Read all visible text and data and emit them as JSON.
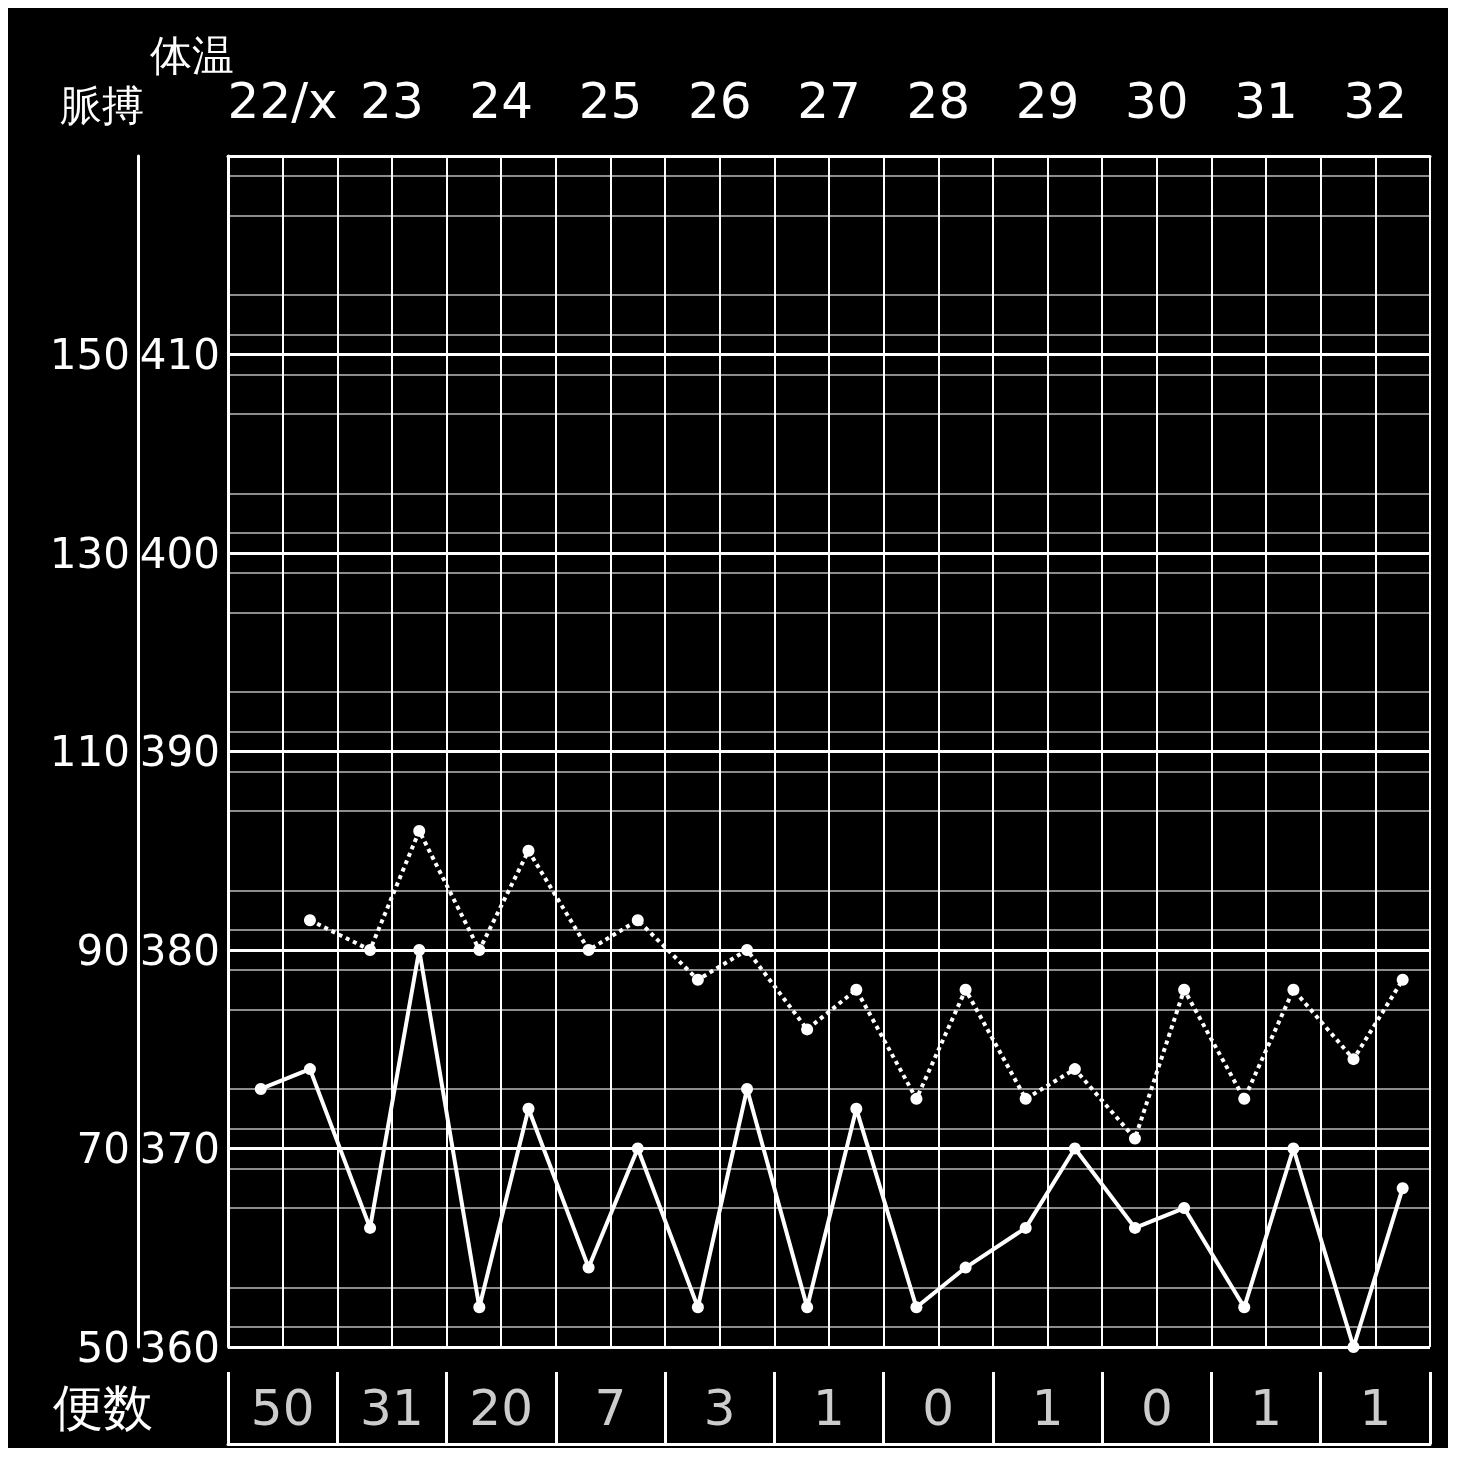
{
  "chart_data": [
    {
      "type": "line",
      "ylabel": "脈搏",
      "y2label": "体温",
      "x": [
        22.3,
        22.75,
        23.3,
        23.75,
        24.3,
        24.75,
        25.3,
        25.75,
        26.3,
        26.75,
        27.3,
        27.75,
        28.3,
        28.75,
        29.3,
        29.75,
        30.3,
        30.75,
        31.3,
        31.75,
        32.3,
        32.75
      ],
      "xlim": [
        22,
        33
      ],
      "xticks": [
        {
          "value": 22.5,
          "label": "22/x"
        },
        {
          "value": 23.5,
          "label": "23"
        },
        {
          "value": 24.5,
          "label": "24"
        },
        {
          "value": 25.5,
          "label": "25"
        },
        {
          "value": 26.5,
          "label": "26"
        },
        {
          "value": 27.5,
          "label": "27"
        },
        {
          "value": 28.5,
          "label": "28"
        },
        {
          "value": 29.5,
          "label": "29"
        },
        {
          "value": 30.5,
          "label": "30"
        },
        {
          "value": 31.5,
          "label": "31"
        },
        {
          "value": 32.5,
          "label": "32"
        }
      ],
      "ylim": [
        50,
        170
      ],
      "yticks": [
        50,
        70,
        90,
        110,
        130,
        150
      ],
      "y2lim": [
        360,
        420
      ],
      "y2ticks": [
        360,
        370,
        380,
        390,
        400,
        410
      ],
      "series": [
        {
          "color": "#ffffff",
          "axis": "y2",
          "line_style": "solid",
          "values": [
            373,
            374,
            366,
            380,
            362,
            372,
            364,
            370,
            362,
            373,
            362,
            372,
            362,
            364,
            366,
            370,
            366,
            367,
            362,
            370,
            360,
            368
          ]
        },
        {
          "color": "#ffffff",
          "axis": "y",
          "line_style": "dotted",
          "values": [
            null,
            93,
            90,
            102,
            90,
            100,
            90,
            93,
            87,
            90,
            82,
            86,
            75,
            86,
            75,
            78,
            71,
            86,
            75,
            86,
            79,
            87
          ]
        }
      ],
      "marker": "circle",
      "grid": true
    },
    {
      "type": "other",
      "title": "便数",
      "categories": [
        null,
        null,
        null,
        null,
        null,
        null,
        null,
        null,
        null,
        null,
        null
      ],
      "values": [
        50,
        31,
        20,
        7,
        3,
        1,
        0,
        1,
        0,
        1,
        1
      ],
      "data_labels": true
    }
  ]
}
